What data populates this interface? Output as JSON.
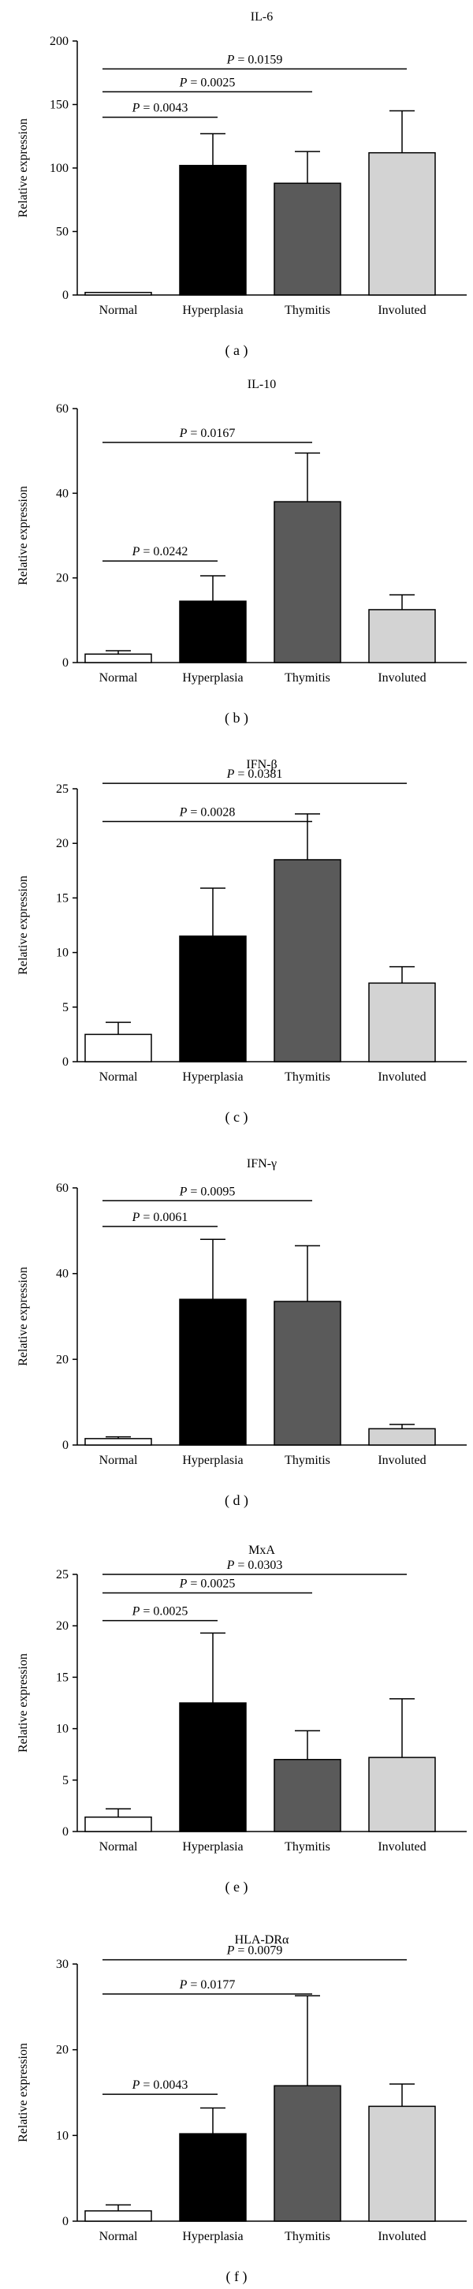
{
  "chart_data": [
    {
      "type": "bar",
      "title": "IL-6",
      "panel_label": "( a )",
      "ylabel": "Relative expression",
      "ylim": [
        0,
        200
      ],
      "yticks": [
        0,
        50,
        100,
        150,
        200
      ],
      "categories": [
        "Normal",
        "Hyperplasia",
        "Thymitis",
        "Involuted"
      ],
      "values": [
        2,
        102,
        88,
        112
      ],
      "errors": [
        0,
        25,
        25,
        33
      ],
      "colors": [
        "#ffffff",
        "#000000",
        "#5a5a5a",
        "#d3d3d3"
      ],
      "comparisons": [
        {
          "from": 0,
          "to": 3,
          "level": 178,
          "p_label": "P",
          "p_value": " = 0.0159"
        },
        {
          "from": 0,
          "to": 2,
          "level": 160,
          "p_label": "P",
          "p_value": " = 0.0025"
        },
        {
          "from": 0,
          "to": 1,
          "level": 140,
          "p_label": "P",
          "p_value": " = 0.0043"
        }
      ]
    },
    {
      "type": "bar",
      "title": "IL-10",
      "panel_label": "( b )",
      "ylabel": "Relative expression",
      "ylim": [
        0,
        60
      ],
      "yticks": [
        0,
        20,
        40,
        60
      ],
      "categories": [
        "Normal",
        "Hyperplasia",
        "Thymitis",
        "Involuted"
      ],
      "values": [
        2,
        14.5,
        38,
        12.5
      ],
      "errors": [
        0.8,
        6,
        11.5,
        3.5
      ],
      "colors": [
        "#ffffff",
        "#000000",
        "#5a5a5a",
        "#d3d3d3"
      ],
      "comparisons": [
        {
          "from": 0,
          "to": 2,
          "level": 52,
          "p_label": "P",
          "p_value": " = 0.0167"
        },
        {
          "from": 0,
          "to": 1,
          "level": 24,
          "p_label": "P",
          "p_value": " = 0.0242"
        }
      ]
    },
    {
      "type": "bar",
      "title": "IFN-β",
      "panel_label": "( c )",
      "ylabel": "Relative expression",
      "ylim": [
        0,
        25
      ],
      "yticks": [
        0,
        5,
        10,
        15,
        20,
        25
      ],
      "categories": [
        "Normal",
        "Hyperplasia",
        "Thymitis",
        "Involuted"
      ],
      "values": [
        2.5,
        11.5,
        18.5,
        7.2
      ],
      "errors": [
        1.1,
        4.4,
        4.2,
        1.5
      ],
      "colors": [
        "#ffffff",
        "#000000",
        "#5a5a5a",
        "#d3d3d3"
      ],
      "comparisons": [
        {
          "from": 0,
          "to": 3,
          "level": 25.5,
          "p_label": "P",
          "p_value": " = 0.0381"
        },
        {
          "from": 0,
          "to": 2,
          "level": 22,
          "p_label": "P",
          "p_value": " = 0.0028"
        }
      ]
    },
    {
      "type": "bar",
      "title": "IFN-γ",
      "panel_label": "( d )",
      "ylabel": "Relative expression",
      "ylim": [
        0,
        60
      ],
      "yticks": [
        0,
        20,
        40,
        60
      ],
      "categories": [
        "Normal",
        "Hyperplasia",
        "Thymitis",
        "Involuted"
      ],
      "values": [
        1.5,
        34,
        33.5,
        3.8
      ],
      "errors": [
        0.4,
        14,
        13,
        1
      ],
      "colors": [
        "#ffffff",
        "#000000",
        "#5a5a5a",
        "#d3d3d3"
      ],
      "comparisons": [
        {
          "from": 0,
          "to": 2,
          "level": 57,
          "p_label": "P",
          "p_value": " = 0.0095"
        },
        {
          "from": 0,
          "to": 1,
          "level": 51,
          "p_label": "P",
          "p_value": " = 0.0061"
        }
      ]
    },
    {
      "type": "bar",
      "title": "MxA",
      "panel_label": "( e )",
      "ylabel": "Relative expression",
      "ylim": [
        0,
        25
      ],
      "yticks": [
        0,
        5,
        10,
        15,
        20,
        25
      ],
      "categories": [
        "Normal",
        "Hyperplasia",
        "Thymitis",
        "Involuted"
      ],
      "values": [
        1.4,
        12.5,
        7,
        7.2
      ],
      "errors": [
        0.8,
        6.8,
        2.8,
        5.7
      ],
      "colors": [
        "#ffffff",
        "#000000",
        "#5a5a5a",
        "#d3d3d3"
      ],
      "comparisons": [
        {
          "from": 0,
          "to": 3,
          "level": 25,
          "p_label": "P",
          "p_value": " = 0.0303"
        },
        {
          "from": 0,
          "to": 2,
          "level": 23.2,
          "p_label": "P",
          "p_value": " = 0.0025"
        },
        {
          "from": 0,
          "to": 1,
          "level": 20.5,
          "p_label": "P",
          "p_value": " = 0.0025"
        }
      ]
    },
    {
      "type": "bar",
      "title": "HLA-DRα",
      "panel_label": "( f )",
      "ylabel": "Relative expression",
      "ylim": [
        0,
        30
      ],
      "yticks": [
        0,
        10,
        20,
        30
      ],
      "categories": [
        "Normal",
        "Hyperplasia",
        "Thymitis",
        "Involuted"
      ],
      "values": [
        1.2,
        10.2,
        15.8,
        13.4
      ],
      "errors": [
        0.7,
        3,
        10.5,
        2.6
      ],
      "colors": [
        "#ffffff",
        "#000000",
        "#5a5a5a",
        "#d3d3d3"
      ],
      "comparisons": [
        {
          "from": 0,
          "to": 3,
          "level": 30.5,
          "p_label": "P",
          "p_value": " = 0.0079"
        },
        {
          "from": 0,
          "to": 2,
          "level": 26.5,
          "p_label": "P",
          "p_value": " = 0.0177"
        },
        {
          "from": 0,
          "to": 1,
          "level": 14.8,
          "p_label": "P",
          "p_value": " = 0.0043"
        }
      ]
    }
  ]
}
